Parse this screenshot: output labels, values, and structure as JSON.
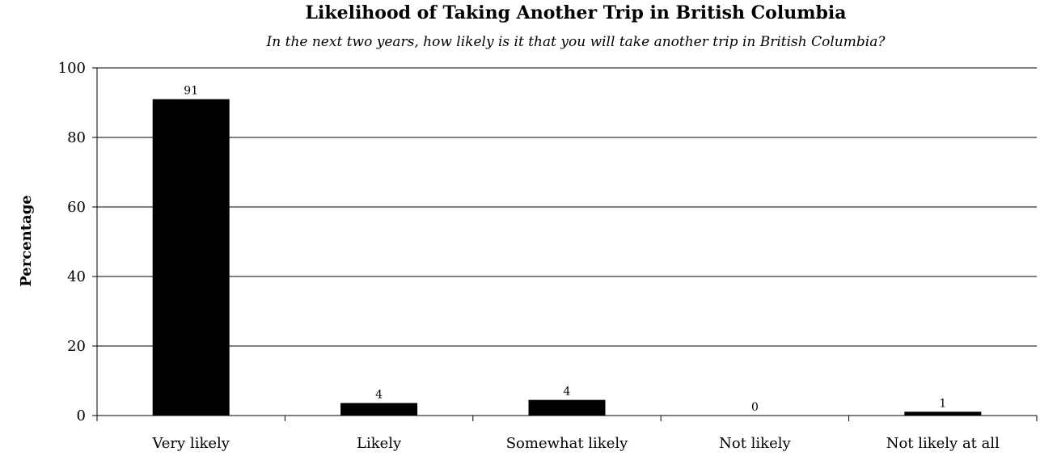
{
  "chart_data": {
    "type": "bar",
    "title": "Likelihood of Taking Another Trip in British Columbia",
    "subtitle": "In the next two years, how likely is it that you will take another trip in British Columbia?",
    "xlabel": "",
    "ylabel": "Percentage",
    "categories": [
      "Very likely",
      "Likely",
      "Somewhat likely",
      "Not likely",
      "Not likely at all"
    ],
    "values": [
      91,
      3.6,
      4.5,
      0,
      1.1
    ],
    "data_labels": [
      "91",
      "4",
      "4",
      "0",
      "1"
    ],
    "ylim": [
      0,
      100
    ],
    "yticks": [
      0,
      20,
      40,
      60,
      80,
      100
    ],
    "ytick_labels": [
      "0",
      "20",
      "40",
      "60",
      "80",
      "100"
    ],
    "grid": true,
    "legend": "none",
    "bar_color": "#000000"
  }
}
